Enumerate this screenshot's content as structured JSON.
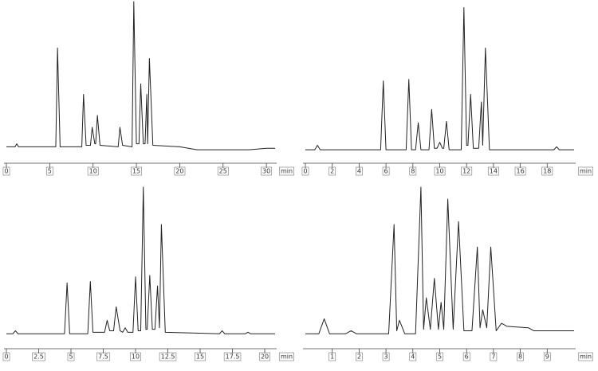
{
  "chart_data": [
    {
      "type": "line",
      "x_label": "min",
      "xlim": [
        0,
        31
      ],
      "ylim": [
        0,
        100
      ],
      "xticks": [
        0,
        5,
        10,
        15,
        20,
        25,
        30
      ],
      "color": "#222222",
      "x": [
        0,
        1.0,
        1.2,
        1.4,
        5.7,
        5.9,
        6.2,
        8.7,
        8.9,
        9.2,
        9.7,
        9.9,
        10.2,
        10.3,
        10.5,
        10.8,
        12.9,
        13.1,
        13.4,
        14.5,
        14.7,
        15.0,
        15.3,
        15.5,
        15.8,
        16.0,
        16.2,
        16.3,
        16.5,
        16.9,
        20,
        22,
        28,
        30,
        31
      ],
      "y": [
        3,
        3,
        5,
        3,
        3,
        69,
        3,
        3,
        38,
        4,
        4,
        16,
        5,
        5,
        24,
        4,
        3,
        16,
        4,
        3,
        100,
        5,
        5,
        45,
        5,
        5,
        38,
        5,
        62,
        4,
        3,
        1,
        1,
        2,
        2
      ]
    },
    {
      "type": "line",
      "x_label": "min",
      "xlim": [
        0,
        20
      ],
      "ylim": [
        0,
        100
      ],
      "xticks": [
        0,
        2,
        4,
        6,
        8,
        10,
        12,
        14,
        16,
        18
      ],
      "color": "#222222",
      "x": [
        0,
        0.7,
        0.9,
        1.1,
        5.6,
        5.8,
        6.0,
        7.5,
        7.7,
        7.9,
        8.2,
        8.4,
        8.6,
        9.2,
        9.4,
        9.6,
        9.8,
        10.0,
        10.2,
        10.3,
        10.5,
        10.7,
        11.6,
        11.8,
        12.0,
        12.1,
        12.3,
        12.5,
        12.9,
        13.1,
        13.2,
        13.4,
        13.7,
        18.5,
        18.7,
        18.9,
        20
      ],
      "y": [
        1,
        1,
        4,
        1,
        1,
        47,
        1,
        1,
        48,
        1,
        1,
        19,
        1,
        1,
        28,
        2,
        2,
        6,
        2,
        2,
        20,
        1,
        1,
        96,
        4,
        4,
        38,
        2,
        2,
        33,
        4,
        69,
        1,
        1,
        3,
        1,
        1
      ]
    },
    {
      "type": "line",
      "x_label": "min",
      "xlim": [
        0,
        20.8
      ],
      "ylim": [
        0,
        100
      ],
      "xticks": [
        0,
        2.5,
        5,
        7.5,
        10,
        12.5,
        15,
        17.5,
        20
      ],
      "color": "#222222",
      "x": [
        0,
        0.5,
        0.7,
        0.9,
        4.5,
        4.7,
        4.9,
        6.3,
        6.5,
        6.7,
        7.6,
        7.8,
        8.0,
        8.3,
        8.5,
        8.8,
        9.0,
        9.2,
        9.4,
        9.8,
        10.0,
        10.2,
        10.4,
        10.6,
        10.8,
        10.9,
        11.1,
        11.3,
        11.5,
        11.7,
        11.85,
        12.0,
        12.3,
        16.5,
        16.7,
        16.9,
        18.5,
        18.7,
        18.9,
        20.8
      ],
      "y": [
        2,
        2,
        4,
        2,
        2,
        36,
        2,
        2,
        37,
        3,
        3,
        11,
        4,
        4,
        20,
        4,
        3,
        6,
        3,
        3,
        40,
        4,
        4,
        100,
        5,
        5,
        41,
        5,
        5,
        34,
        6,
        75,
        3,
        2,
        4,
        2,
        2,
        3,
        2,
        2
      ]
    },
    {
      "type": "line",
      "x_label": "min",
      "xlim": [
        0,
        10
      ],
      "ylim": [
        0,
        100
      ],
      "xticks": [
        1,
        2,
        3,
        4,
        5,
        6,
        7,
        8,
        9
      ],
      "color": "#222222",
      "x": [
        0,
        0.5,
        0.7,
        0.9,
        1.5,
        1.7,
        1.9,
        3.1,
        3.3,
        3.4,
        3.5,
        3.7,
        4.1,
        4.3,
        4.4,
        4.5,
        4.65,
        4.8,
        4.95,
        5.05,
        5.15,
        5.3,
        5.5,
        5.7,
        5.9,
        6.2,
        6.4,
        6.5,
        6.6,
        6.75,
        6.9,
        7.1,
        7.3,
        7.5,
        8.3,
        8.5,
        10
      ],
      "y": [
        2,
        2,
        12,
        2,
        2,
        4,
        2,
        2,
        75,
        4,
        11,
        2,
        2,
        100,
        5,
        26,
        5,
        39,
        5,
        23,
        5,
        92,
        5,
        77,
        4,
        4,
        60,
        6,
        18,
        6,
        60,
        4,
        9,
        7,
        6,
        4,
        4
      ]
    }
  ]
}
